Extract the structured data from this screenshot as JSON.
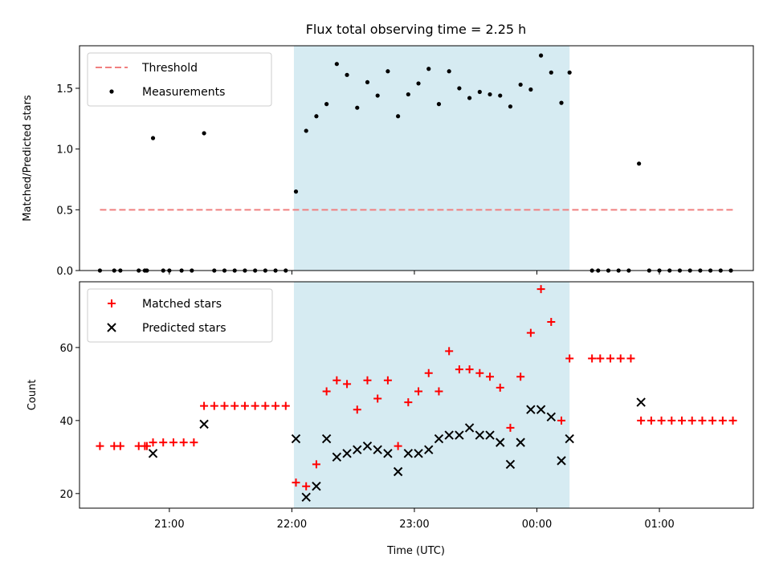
{
  "chart_data": [
    {
      "type": "scatter",
      "title": "Flux total observing time = 2.25 h",
      "xlabel": "",
      "ylabel": "Matched/Predicted stars",
      "xlim": [
        "20:16",
        "01:46"
      ],
      "ylim": [
        0,
        1.85
      ],
      "yticks": [
        0.0,
        0.5,
        1.0,
        1.5
      ],
      "ytick_labels": [
        "0.0",
        "0.5",
        "1.0",
        "1.5"
      ],
      "legend_position": "top-left",
      "highlight": {
        "start": "22:01",
        "end": "00:16",
        "color": "#add8e6"
      },
      "threshold": {
        "name": "Threshold",
        "value": 0.5,
        "x_start": "20:26",
        "x_end": "01:36",
        "color": "#f08080",
        "style": "dashed"
      },
      "series": [
        {
          "name": "Measurements",
          "color": "#000000",
          "marker": "dot",
          "points": [
            [
              "20:26",
              0
            ],
            [
              "20:33",
              0
            ],
            [
              "20:36",
              0
            ],
            [
              "20:45",
              0
            ],
            [
              "20:48",
              0
            ],
            [
              "20:49",
              0
            ],
            [
              "20:52",
              1.09
            ],
            [
              "20:57",
              0
            ],
            [
              "21:00",
              0
            ],
            [
              "21:06",
              0
            ],
            [
              "21:11",
              0
            ],
            [
              "21:17",
              1.13
            ],
            [
              "21:22",
              0
            ],
            [
              "21:27",
              0
            ],
            [
              "21:32",
              0
            ],
            [
              "21:37",
              0
            ],
            [
              "21:42",
              0
            ],
            [
              "21:47",
              0
            ],
            [
              "21:52",
              0
            ],
            [
              "21:57",
              0
            ],
            [
              "22:02",
              0.65
            ],
            [
              "22:07",
              1.15
            ],
            [
              "22:12",
              1.27
            ],
            [
              "22:17",
              1.37
            ],
            [
              "22:22",
              1.7
            ],
            [
              "22:27",
              1.61
            ],
            [
              "22:32",
              1.34
            ],
            [
              "22:37",
              1.55
            ],
            [
              "22:42",
              1.44
            ],
            [
              "22:47",
              1.64
            ],
            [
              "22:52",
              1.27
            ],
            [
              "22:57",
              1.45
            ],
            [
              "23:02",
              1.54
            ],
            [
              "23:07",
              1.66
            ],
            [
              "23:12",
              1.37
            ],
            [
              "23:17",
              1.64
            ],
            [
              "23:22",
              1.5
            ],
            [
              "23:27",
              1.42
            ],
            [
              "23:32",
              1.47
            ],
            [
              "23:37",
              1.45
            ],
            [
              "23:42",
              1.44
            ],
            [
              "23:47",
              1.35
            ],
            [
              "23:52",
              1.53
            ],
            [
              "23:57",
              1.49
            ],
            [
              "00:02",
              1.77
            ],
            [
              "00:07",
              1.63
            ],
            [
              "00:12",
              1.38
            ],
            [
              "00:16",
              1.63
            ],
            [
              "00:27",
              0
            ],
            [
              "00:30",
              0
            ],
            [
              "00:35",
              0
            ],
            [
              "00:40",
              0
            ],
            [
              "00:45",
              0
            ],
            [
              "00:50",
              0.88
            ],
            [
              "00:55",
              0
            ],
            [
              "01:00",
              0
            ],
            [
              "01:05",
              0
            ],
            [
              "01:10",
              0
            ],
            [
              "01:15",
              0
            ],
            [
              "01:20",
              0
            ],
            [
              "01:25",
              0
            ],
            [
              "01:30",
              0
            ],
            [
              "01:35",
              0
            ]
          ]
        }
      ]
    },
    {
      "type": "scatter",
      "title": "",
      "xlabel": "Time (UTC)",
      "ylabel": "Count",
      "xlim": [
        "20:16",
        "01:46"
      ],
      "ylim": [
        16,
        78
      ],
      "yticks": [
        20,
        40,
        60
      ],
      "ytick_labels": [
        "20",
        "40",
        "60"
      ],
      "xticks": [
        "21:00",
        "22:00",
        "23:00",
        "00:00",
        "01:00"
      ],
      "xtick_labels": [
        "21:00",
        "22:00",
        "23:00",
        "00:00",
        "01:00"
      ],
      "legend_position": "top-left",
      "highlight": {
        "start": "22:01",
        "end": "00:16",
        "color": "#add8e6"
      },
      "series": [
        {
          "name": "Matched stars",
          "color": "#ff0000",
          "marker": "plus",
          "points": [
            [
              "20:26",
              33
            ],
            [
              "20:33",
              33
            ],
            [
              "20:36",
              33
            ],
            [
              "20:45",
              33
            ],
            [
              "20:48",
              33
            ],
            [
              "20:49",
              33
            ],
            [
              "20:52",
              34
            ],
            [
              "20:57",
              34
            ],
            [
              "21:02",
              34
            ],
            [
              "21:07",
              34
            ],
            [
              "21:12",
              34
            ],
            [
              "21:17",
              44
            ],
            [
              "21:22",
              44
            ],
            [
              "21:27",
              44
            ],
            [
              "21:32",
              44
            ],
            [
              "21:37",
              44
            ],
            [
              "21:42",
              44
            ],
            [
              "21:47",
              44
            ],
            [
              "21:52",
              44
            ],
            [
              "21:57",
              44
            ],
            [
              "22:02",
              23
            ],
            [
              "22:07",
              22
            ],
            [
              "22:12",
              28
            ],
            [
              "22:17",
              48
            ],
            [
              "22:22",
              51
            ],
            [
              "22:27",
              50
            ],
            [
              "22:32",
              43
            ],
            [
              "22:37",
              51
            ],
            [
              "22:42",
              46
            ],
            [
              "22:47",
              51
            ],
            [
              "22:52",
              33
            ],
            [
              "22:57",
              45
            ],
            [
              "23:02",
              48
            ],
            [
              "23:07",
              53
            ],
            [
              "23:12",
              48
            ],
            [
              "23:17",
              59
            ],
            [
              "23:22",
              54
            ],
            [
              "23:27",
              54
            ],
            [
              "23:32",
              53
            ],
            [
              "23:37",
              52
            ],
            [
              "23:42",
              49
            ],
            [
              "23:47",
              38
            ],
            [
              "23:52",
              52
            ],
            [
              "23:57",
              64
            ],
            [
              "00:02",
              76
            ],
            [
              "00:07",
              67
            ],
            [
              "00:12",
              40
            ],
            [
              "00:16",
              57
            ],
            [
              "00:27",
              57
            ],
            [
              "00:31",
              57
            ],
            [
              "00:36",
              57
            ],
            [
              "00:41",
              57
            ],
            [
              "00:46",
              57
            ],
            [
              "00:51",
              40
            ],
            [
              "00:56",
              40
            ],
            [
              "01:01",
              40
            ],
            [
              "01:06",
              40
            ],
            [
              "01:11",
              40
            ],
            [
              "01:16",
              40
            ],
            [
              "01:21",
              40
            ],
            [
              "01:26",
              40
            ],
            [
              "01:31",
              40
            ],
            [
              "01:36",
              40
            ]
          ]
        },
        {
          "name": "Predicted stars",
          "color": "#000000",
          "marker": "x",
          "points": [
            [
              "20:52",
              31
            ],
            [
              "21:17",
              39
            ],
            [
              "22:02",
              35
            ],
            [
              "22:07",
              19
            ],
            [
              "22:12",
              22
            ],
            [
              "22:17",
              35
            ],
            [
              "22:22",
              30
            ],
            [
              "22:27",
              31
            ],
            [
              "22:32",
              32
            ],
            [
              "22:37",
              33
            ],
            [
              "22:42",
              32
            ],
            [
              "22:47",
              31
            ],
            [
              "22:52",
              26
            ],
            [
              "22:57",
              31
            ],
            [
              "23:02",
              31
            ],
            [
              "23:07",
              32
            ],
            [
              "23:12",
              35
            ],
            [
              "23:17",
              36
            ],
            [
              "23:22",
              36
            ],
            [
              "23:27",
              38
            ],
            [
              "23:32",
              36
            ],
            [
              "23:37",
              36
            ],
            [
              "23:42",
              34
            ],
            [
              "23:47",
              28
            ],
            [
              "23:52",
              34
            ],
            [
              "23:57",
              43
            ],
            [
              "00:02",
              43
            ],
            [
              "00:07",
              41
            ],
            [
              "00:12",
              29
            ],
            [
              "00:16",
              35
            ],
            [
              "00:51",
              45
            ]
          ]
        }
      ]
    }
  ]
}
